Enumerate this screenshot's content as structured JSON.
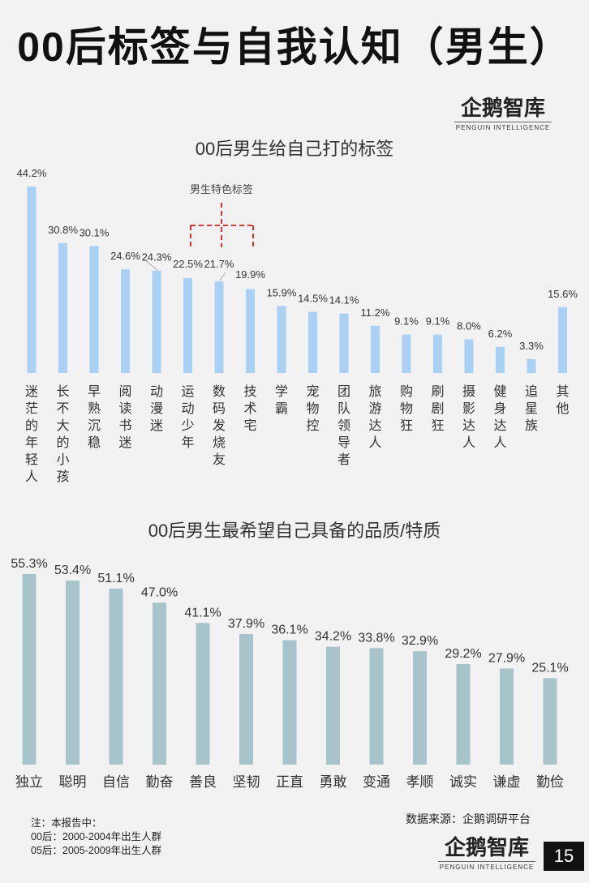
{
  "main_title": "00后标签与自我认知（男生）",
  "logo": {
    "word": "企鹅智库",
    "sub": "PENGUIN INTELLIGENCE"
  },
  "chart_data": [
    {
      "type": "bar",
      "title": "00后男生给自己打的标签",
      "categories": [
        "迷茫的年轻人",
        "长不大的小孩",
        "早熟沉稳",
        "阅读书迷",
        "动漫迷",
        "运动少年",
        "数码发烧友",
        "技术宅",
        "学霸",
        "宠物控",
        "团队领导者",
        "旅游达人",
        "购物狂",
        "刷剧狂",
        "摄影达人",
        "健身达人",
        "追星族",
        "其他"
      ],
      "values": [
        44.2,
        30.8,
        30.1,
        24.6,
        24.3,
        22.5,
        21.7,
        19.9,
        15.9,
        14.5,
        14.1,
        11.2,
        9.1,
        9.1,
        8.0,
        6.2,
        3.3,
        15.6
      ],
      "value_labels": [
        "44.2%",
        "30.8%",
        "30.1%",
        "24.6%",
        "24.3%",
        "22.5%",
        "21.7%",
        "19.9%",
        "15.9%",
        "14.5%",
        "14.1%",
        "11.2%",
        "9.1%",
        "9.1%",
        "8.0%",
        "6.2%",
        "3.3%",
        "15.6%"
      ],
      "annotation": "男生特色标签",
      "color": "#a9d1f5"
    },
    {
      "type": "bar",
      "title": "00后男生最希望自己具备的品质/特质",
      "categories": [
        "独立",
        "聪明",
        "自信",
        "勤奋",
        "善良",
        "坚韧",
        "正直",
        "勇敢",
        "变通",
        "孝顺",
        "诚实",
        "谦虚",
        "勤俭"
      ],
      "values": [
        55.3,
        53.4,
        51.1,
        47.0,
        41.1,
        37.9,
        36.1,
        34.2,
        33.8,
        32.9,
        29.2,
        27.9,
        25.1
      ],
      "value_labels": [
        "55.3%",
        "53.4%",
        "51.1%",
        "47.0%",
        "41.1%",
        "37.9%",
        "36.1%",
        "34.2%",
        "33.8%",
        "32.9%",
        "29.2%",
        "27.9%",
        "25.1%"
      ],
      "color": "#a7c4cb"
    }
  ],
  "footer": {
    "note_lines": [
      "注：本报告中：",
      "00后：2000-2004年出生人群",
      "05后：2005-2009年出生人群"
    ],
    "source": "数据来源：企鹅调研平台",
    "page_number": "15"
  }
}
